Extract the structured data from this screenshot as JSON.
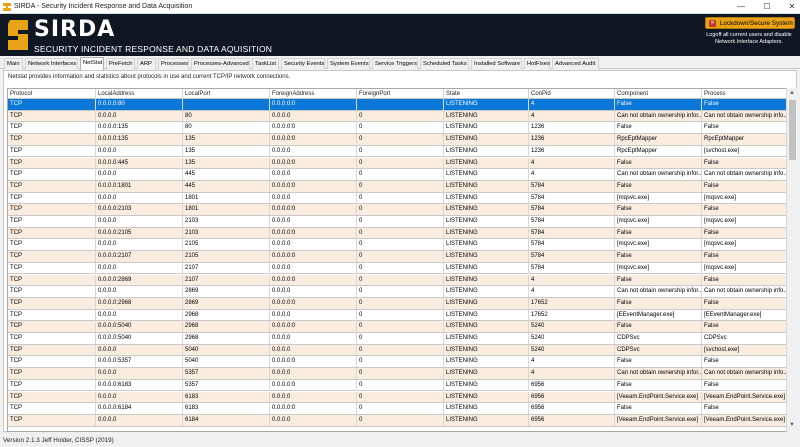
{
  "window": {
    "title": "SIRDA - Security Incident Response and Data Acquisition",
    "minimize": "—",
    "maximize": "☐",
    "close": "✕"
  },
  "banner": {
    "logo_text": "SIRDA",
    "subtitle": "SECURITY INCIDENT RESPONSE AND DATA AQUISITION",
    "lockdown_label": "Lockdown/Secure System",
    "lockdown_hint": "Logoff all current users and disable Network Interface Adapters."
  },
  "tabs": [
    {
      "label": "Main"
    },
    {
      "label": "Network Interfaces"
    },
    {
      "label": "NetStat",
      "active": true
    },
    {
      "label": "PreFetch"
    },
    {
      "label": "ARP"
    },
    {
      "label": "Processes"
    },
    {
      "label": "Processes-Advanced"
    },
    {
      "label": "TaskList"
    },
    {
      "label": "Security Events"
    },
    {
      "label": "System Events"
    },
    {
      "label": "Service Triggers"
    },
    {
      "label": "Scheduled Tasks"
    },
    {
      "label": "Installed Software"
    },
    {
      "label": "HotFixes"
    },
    {
      "label": "Advanced Audit"
    }
  ],
  "netstat": {
    "description": "Netstat provides information and statistics about protocols in use and current TCP/IP network connections.",
    "columns": [
      "Protocol",
      "LocalAddress",
      "LocalPort",
      "ForeignAddress",
      "ForeignPort",
      "State",
      "ConPid",
      "Component",
      "Process"
    ],
    "rows": [
      [
        "TCP",
        "0.0.0.0:80",
        "",
        "0.0.0.0:0",
        "",
        "LISTENING",
        "4",
        "False",
        "False"
      ],
      [
        "TCP",
        "0.0.0.0",
        "80",
        "0.0.0.0",
        "0",
        "LISTENING",
        "4",
        "Can not obtain ownership infor...",
        "Can not obtain ownership info..."
      ],
      [
        "TCP",
        "0.0.0.0:135",
        "80",
        "0.0.0.0:0",
        "0",
        "LISTENING",
        "1236",
        "False",
        "False"
      ],
      [
        "TCP",
        "0.0.0.0:135",
        "135",
        "0.0.0.0:0",
        "0",
        "LISTENING",
        "1236",
        "RpcEptMapper",
        "RpcEptMapper"
      ],
      [
        "TCP",
        "0.0.0.0",
        "135",
        "0.0.0.0",
        "0",
        "LISTENING",
        "1236",
        "RpcEptMapper",
        "[svchost.exe]"
      ],
      [
        "TCP",
        "0.0.0.0:445",
        "135",
        "0.0.0.0:0",
        "0",
        "LISTENING",
        "4",
        "False",
        "False"
      ],
      [
        "TCP",
        "0.0.0.0",
        "445",
        "0.0.0.0",
        "0",
        "LISTENING",
        "4",
        "Can not obtain ownership infor...",
        "Can not obtain ownership info..."
      ],
      [
        "TCP",
        "0.0.0.0:1801",
        "445",
        "0.0.0.0:0",
        "0",
        "LISTENING",
        "5784",
        "False",
        "False"
      ],
      [
        "TCP",
        "0.0.0.0",
        "1801",
        "0.0.0.0",
        "0",
        "LISTENING",
        "5784",
        "[mqsvc.exe]",
        "[mqsvc.exe]"
      ],
      [
        "TCP",
        "0.0.0.0:2103",
        "1801",
        "0.0.0.0:0",
        "0",
        "LISTENING",
        "5784",
        "False",
        "False"
      ],
      [
        "TCP",
        "0.0.0.0",
        "2103",
        "0.0.0.0",
        "0",
        "LISTENING",
        "5784",
        "[mqsvc.exe]",
        "[mqsvc.exe]"
      ],
      [
        "TCP",
        "0.0.0.0:2105",
        "2103",
        "0.0.0.0:0",
        "0",
        "LISTENING",
        "5784",
        "False",
        "False"
      ],
      [
        "TCP",
        "0.0.0.0",
        "2105",
        "0.0.0.0",
        "0",
        "LISTENING",
        "5784",
        "[mqsvc.exe]",
        "[mqsvc.exe]"
      ],
      [
        "TCP",
        "0.0.0.0:2107",
        "2105",
        "0.0.0.0:0",
        "0",
        "LISTENING",
        "5784",
        "False",
        "False"
      ],
      [
        "TCP",
        "0.0.0.0",
        "2107",
        "0.0.0.0",
        "0",
        "LISTENING",
        "5784",
        "[mqsvc.exe]",
        "[mqsvc.exe]"
      ],
      [
        "TCP",
        "0.0.0.0:2869",
        "2107",
        "0.0.0.0:0",
        "0",
        "LISTENING",
        "4",
        "False",
        "False"
      ],
      [
        "TCP",
        "0.0.0.0",
        "2869",
        "0.0.0.0",
        "0",
        "LISTENING",
        "4",
        "Can not obtain ownership infor...",
        "Can not obtain ownership info..."
      ],
      [
        "TCP",
        "0.0.0.0:2968",
        "2869",
        "0.0.0.0:0",
        "0",
        "LISTENING",
        "17652",
        "False",
        "False"
      ],
      [
        "TCP",
        "0.0.0.0",
        "2968",
        "0.0.0.0",
        "0",
        "LISTENING",
        "17652",
        "[EEventManager.exe]",
        "[EEventManager.exe]"
      ],
      [
        "TCP",
        "0.0.0.0:5040",
        "2968",
        "0.0.0.0:0",
        "0",
        "LISTENING",
        "5240",
        "False",
        "False"
      ],
      [
        "TCP",
        "0.0.0.0:5040",
        "2968",
        "0.0.0.0",
        "0",
        "LISTENING",
        "5240",
        "CDPSvc",
        "CDPSvc"
      ],
      [
        "TCP",
        "0.0.0.0",
        "5040",
        "0.0.0.0",
        "0",
        "LISTENING",
        "5240",
        "CDPSvc",
        "[svchost.exe]"
      ],
      [
        "TCP",
        "0.0.0.0:5357",
        "5040",
        "0.0.0.0:0",
        "0",
        "LISTENING",
        "4",
        "False",
        "False"
      ],
      [
        "TCP",
        "0.0.0.0",
        "5357",
        "0.0.0.0",
        "0",
        "LISTENING",
        "4",
        "Can not obtain ownership infor...",
        "Can not obtain ownership info..."
      ],
      [
        "TCP",
        "0.0.0.0:6183",
        "5357",
        "0.0.0.0:0",
        "0",
        "LISTENING",
        "6956",
        "False",
        "False"
      ],
      [
        "TCP",
        "0.0.0.0",
        "6183",
        "0.0.0.0",
        "0",
        "LISTENING",
        "6956",
        "[Veeam.EndPoint.Service.exe]",
        "[Veeam.EndPoint.Service.exe]"
      ],
      [
        "TCP",
        "0.0.0.0:6184",
        "6183",
        "0.0.0.0:0",
        "0",
        "LISTENING",
        "6956",
        "False",
        "False"
      ],
      [
        "TCP",
        "0.0.0.0",
        "6184",
        "0.0.0.0",
        "0",
        "LISTENING",
        "6956",
        "[Veeam.EndPoint.Service.exe]",
        "[Veeam.EndPoint.Service.exe]"
      ]
    ]
  },
  "status": {
    "version": "Version 2.1.3   Jeff Holder, CISSP (2019)"
  },
  "colors": {
    "banner": "#0f1822",
    "accent_orange": "#e8a318",
    "selection": "#0b78d7",
    "row_alt": "#fbece0"
  }
}
